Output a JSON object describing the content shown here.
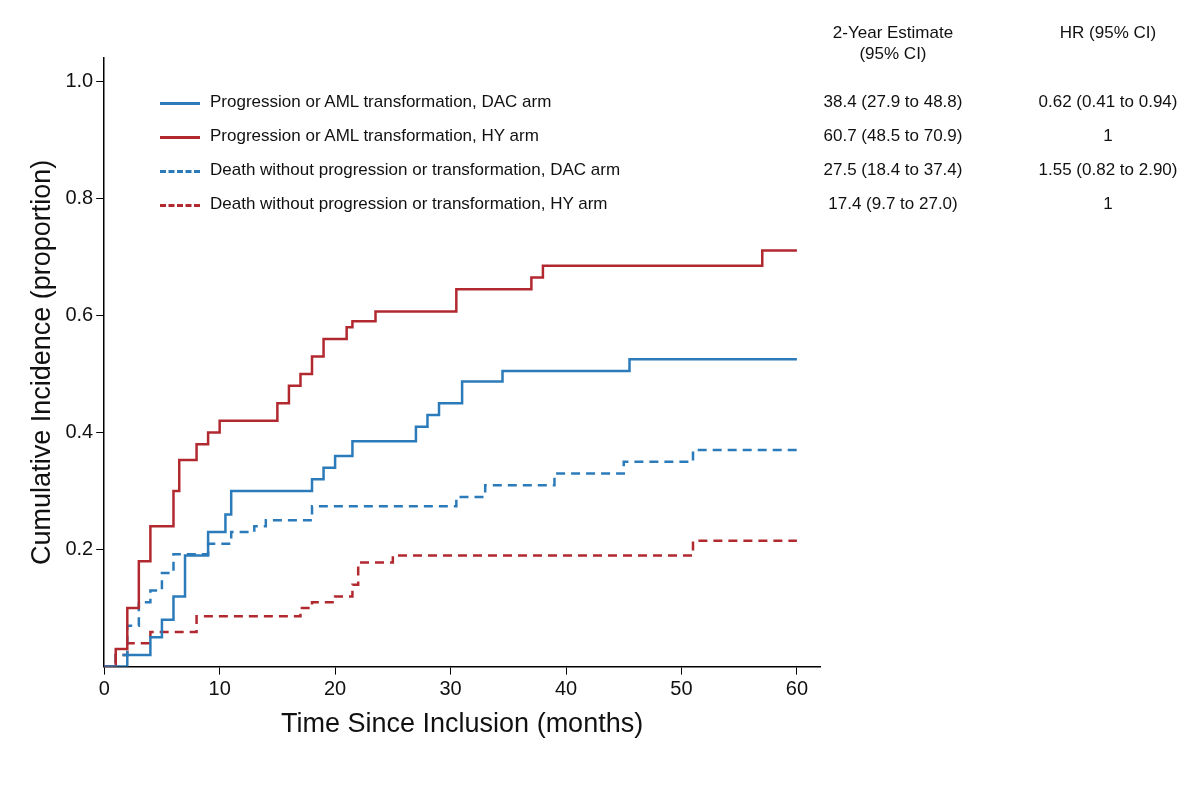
{
  "chart_data": {
    "type": "line",
    "x_label": "Time Since Inclusion (months)",
    "y_label": "Cumulative Incidence (proportion)",
    "xlim": [
      0,
      62
    ],
    "xticks": [
      0,
      10,
      20,
      30,
      40,
      50,
      60
    ],
    "ylim": [
      0,
      1.04
    ],
    "yticks": [
      0.2,
      0.4,
      0.6,
      0.8,
      {
        "value": 1,
        "label": "1.0"
      }
    ],
    "grid": false,
    "legend": "upper left",
    "table_headers": [
      [
        "2-Year Estimate",
        "(95% CI)"
      ],
      [
        "HR (95% CI)"
      ]
    ],
    "series": [
      {
        "name": "Progression or AML transformation, DAC arm",
        "color": "#2b7bba",
        "line_style": "solid",
        "estimate": "38.4 (27.9 to 48.8)",
        "hr": "0.62 (0.41 to 0.94)",
        "x": [
          0,
          2,
          4,
          5,
          6,
          7,
          9,
          10.5,
          11,
          18,
          19,
          20,
          21.5,
          27,
          28,
          29,
          31,
          34.5,
          45.5,
          60
        ],
        "values": [
          0,
          0.02,
          0.05,
          0.08,
          0.12,
          0.19,
          0.23,
          0.26,
          0.3,
          0.32,
          0.34,
          0.36,
          0.385,
          0.41,
          0.43,
          0.45,
          0.487,
          0.505,
          0.525,
          0.525
        ]
      },
      {
        "name": "Progression or AML transformation, HY arm",
        "color": "#b2282f",
        "line_style": "solid",
        "estimate": "60.7 (48.5 to 70.9)",
        "hr": "1",
        "x": [
          0,
          1,
          2,
          3,
          4,
          6,
          6.5,
          8,
          9,
          10,
          15,
          16,
          17,
          18,
          19,
          21,
          21.5,
          23.5,
          30.5,
          37,
          38,
          57,
          60
        ],
        "values": [
          0,
          0.03,
          0.1,
          0.18,
          0.24,
          0.3,
          0.353,
          0.38,
          0.4,
          0.42,
          0.45,
          0.48,
          0.5,
          0.53,
          0.56,
          0.58,
          0.59,
          0.607,
          0.645,
          0.665,
          0.685,
          0.711,
          0.711
        ]
      },
      {
        "name": "Death without progression or transformation, DAC arm",
        "color": "#2b7bba",
        "line_style": "dashed",
        "estimate": "27.5 (18.4 to 37.4)",
        "hr": "1.55 (0.82 to 2.90)",
        "x": [
          0,
          1,
          2,
          3,
          4,
          5,
          6,
          9,
          11,
          13,
          14,
          18,
          30.5,
          33,
          39,
          45,
          51,
          60
        ],
        "values": [
          0,
          0.02,
          0.07,
          0.11,
          0.13,
          0.16,
          0.192,
          0.21,
          0.23,
          0.24,
          0.25,
          0.274,
          0.29,
          0.31,
          0.33,
          0.35,
          0.37,
          0.37
        ]
      },
      {
        "name": "Death without progression or transformation, HY arm",
        "color": "#b2282f",
        "line_style": "dashed",
        "estimate": "17.4 (9.7 to 27.0)",
        "hr": "1",
        "x": [
          0,
          1,
          2,
          4,
          8,
          17,
          18,
          20,
          21.5,
          22,
          25,
          51,
          60
        ],
        "values": [
          0,
          0.02,
          0.04,
          0.059,
          0.086,
          0.1,
          0.11,
          0.12,
          0.14,
          0.178,
          0.19,
          0.215,
          0.215
        ]
      }
    ]
  }
}
